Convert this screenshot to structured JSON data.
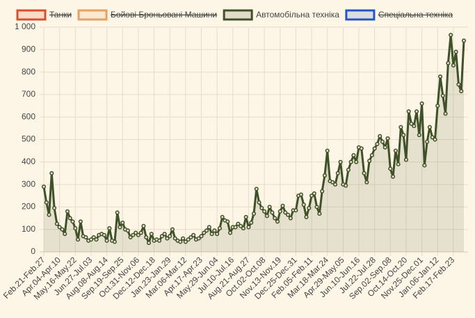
{
  "chart_data": {
    "type": "line",
    "series": [
      {
        "name": "Танки",
        "color": "#d9502a",
        "hidden": true
      },
      {
        "name": "Бойові Броньовані Машини",
        "color": "#e3a266",
        "hidden": true
      },
      {
        "name": "Автомобільна техніка",
        "color": "#3f5128",
        "values": [
          290,
          220,
          165,
          350,
          195,
          125,
          110,
          100,
          80,
          180,
          150,
          135,
          105,
          55,
          135,
          70,
          65,
          50,
          55,
          65,
          55,
          75,
          80,
          75,
          50,
          105,
          50,
          45,
          175,
          110,
          130,
          100,
          95,
          65,
          75,
          85,
          75,
          85,
          115,
          65,
          40,
          80,
          50,
          55,
          50,
          70,
          80,
          60,
          70,
          100,
          60,
          50,
          45,
          60,
          45,
          55,
          65,
          75,
          55,
          60,
          70,
          85,
          95,
          110,
          80,
          95,
          80,
          105,
          155,
          140,
          135,
          85,
          110,
          110,
          125,
          115,
          105,
          155,
          110,
          130,
          170,
          280,
          220,
          195,
          180,
          160,
          200,
          175,
          150,
          135,
          180,
          205,
          175,
          165,
          150,
          185,
          185,
          250,
          255,
          210,
          155,
          195,
          250,
          260,
          200,
          170,
          270,
          340,
          450,
          315,
          310,
          300,
          350,
          400,
          300,
          295,
          365,
          400,
          430,
          400,
          465,
          460,
          350,
          310,
          405,
          430,
          460,
          480,
          515,
          490,
          465,
          505,
          370,
          335,
          450,
          390,
          555,
          520,
          410,
          625,
          570,
          560,
          625,
          520,
          660,
          385,
          490,
          555,
          510,
          500,
          650,
          780,
          695,
          615,
          840,
          965,
          830,
          890,
          745,
          715,
          940
        ]
      },
      {
        "name": "Спеціальна техніка",
        "color": "#2456c8",
        "hidden": true
      }
    ],
    "categories": [
      "Feb.21-Feb.27",
      null,
      null,
      null,
      null,
      null,
      "Apr.04-Apr.10",
      null,
      null,
      null,
      null,
      null,
      "May.16-May.22",
      null,
      null,
      null,
      null,
      null,
      "Jun.27-Jul.03",
      null,
      null,
      null,
      null,
      null,
      "Aug.08-Aug.14",
      null,
      null,
      null,
      null,
      null,
      "Sep.19-Sep.25",
      null,
      null,
      null,
      null,
      null,
      "Oct.31-Nov.06",
      null,
      null,
      null,
      null,
      null,
      "Dec.12-Dec.18",
      null,
      null,
      null,
      null,
      null,
      "Jan.23-Jan.29",
      null,
      null,
      null,
      null,
      null,
      "Mar.06-Mar.12",
      null,
      null,
      null,
      null,
      null,
      "Apr.17-Apr.23",
      null,
      null,
      null,
      null,
      null,
      "May.29-Jun.04",
      null,
      null,
      null,
      null,
      null,
      "Jul.10-Jul.16",
      null,
      null,
      null,
      null,
      null,
      "Aug.21-Aug.27",
      null,
      null,
      null,
      null,
      null,
      "Oct.02-Oct.08",
      null,
      null,
      null,
      null,
      null,
      "Nov.13-Nov.19",
      null,
      null,
      null,
      null,
      null,
      "Dec.25-Dec.31",
      null,
      null,
      null,
      null,
      null,
      "Feb.05-Feb.11",
      null,
      null,
      null,
      null,
      null,
      "Mar.18-Mar.24",
      null,
      null,
      null,
      null,
      null,
      "Apr.29-May.05",
      null,
      null,
      null,
      null,
      null,
      "Jun.10-Jun.16",
      null,
      null,
      null,
      null,
      null,
      "Jul.22-Jul.28",
      null,
      null,
      null,
      null,
      null,
      "Sep.02-Sep.08",
      null,
      null,
      null,
      null,
      null,
      "Oct.14-Oct.20",
      null,
      null,
      null,
      null,
      null,
      "Nov.25-Dec.01",
      null,
      null,
      null,
      null,
      null,
      "Jan.06-Jan.12",
      null,
      null,
      null,
      null,
      null,
      "Feb.17-Feb.23",
      null,
      null,
      null,
      null
    ],
    "ylim": [
      0,
      1000
    ],
    "yticks": [
      0,
      100,
      200,
      300,
      400,
      500,
      600,
      700,
      800,
      900,
      {
        "value": 1000,
        "label": "1 000"
      }
    ],
    "grid": true,
    "legend": "top"
  }
}
